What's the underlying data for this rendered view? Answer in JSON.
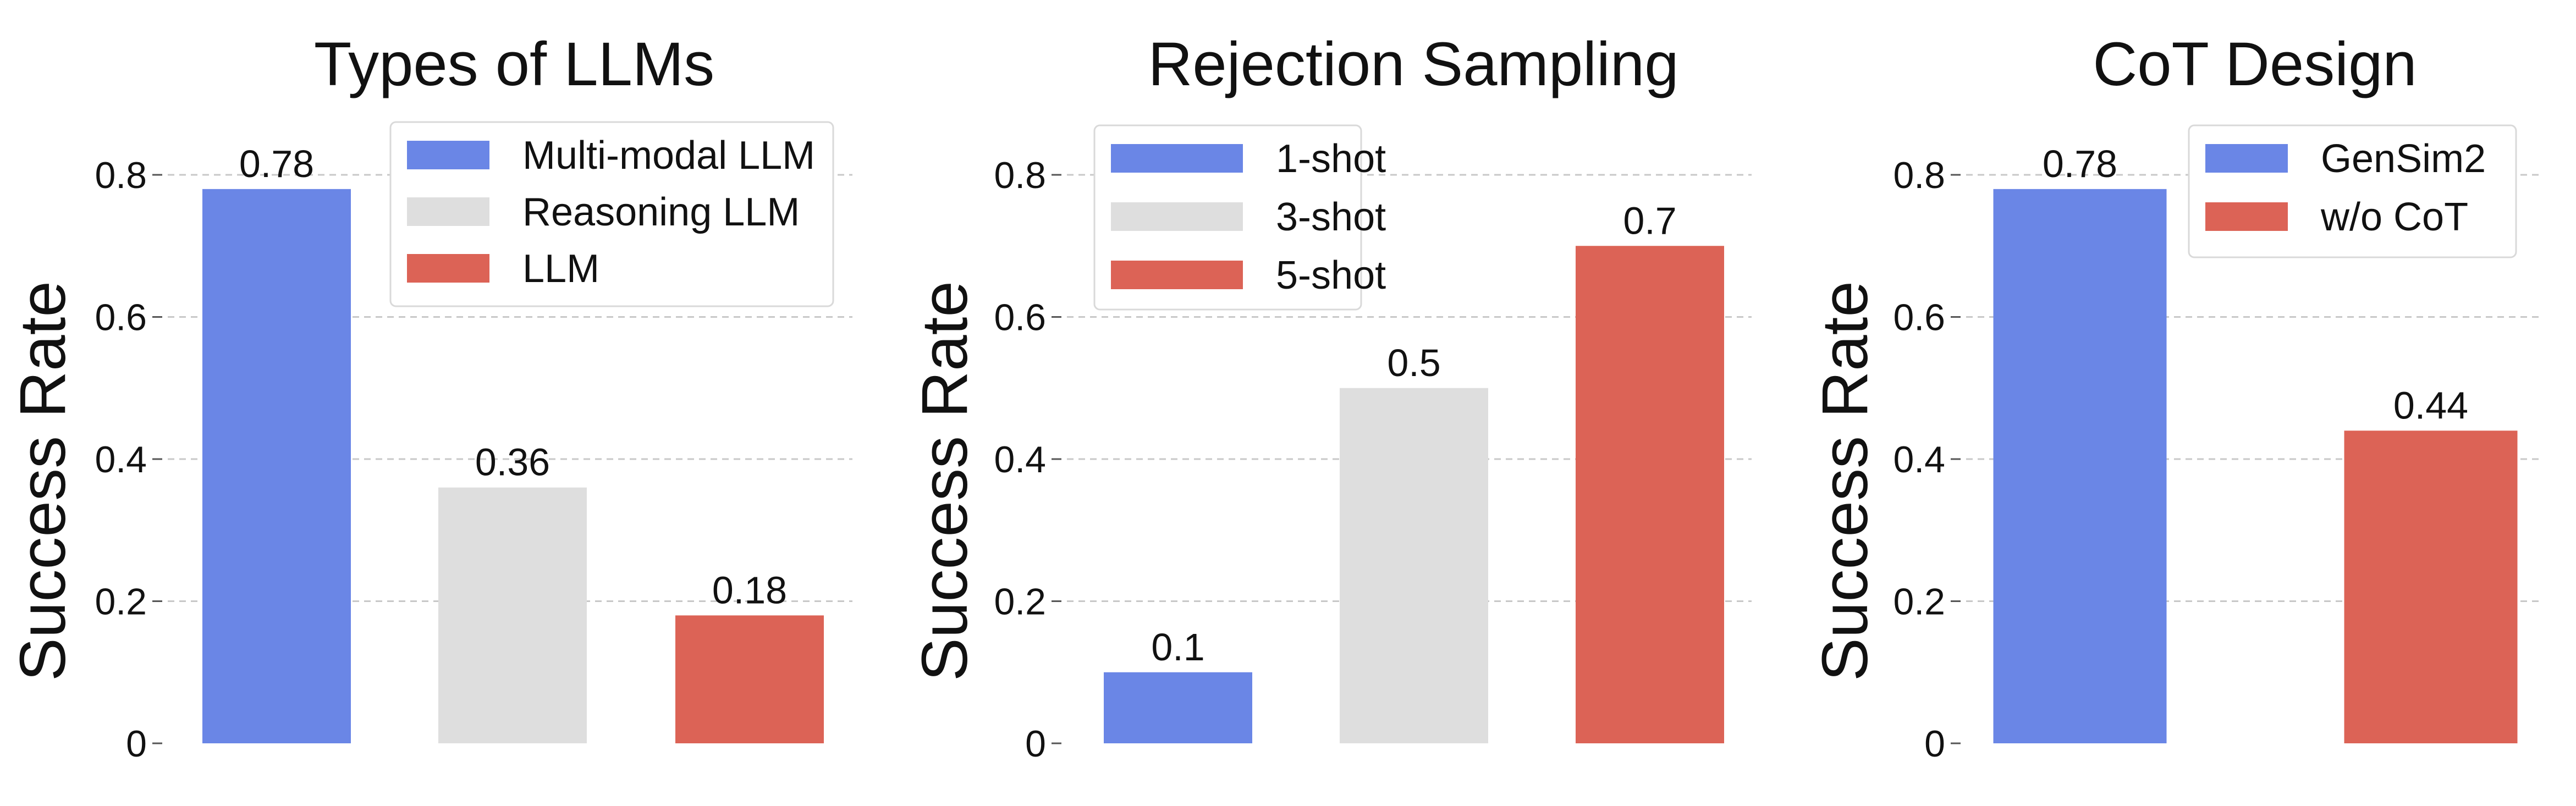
{
  "chart_data": [
    {
      "type": "bar",
      "title": "Types of LLMs",
      "xlabel": "",
      "ylabel": "Success Rate",
      "ylim": [
        0,
        0.8
      ],
      "yticks": [
        0,
        0.2,
        0.4,
        0.6,
        0.8
      ],
      "ytick_labels": [
        "0",
        "0.2",
        "0.4",
        "0.6",
        "0.8"
      ],
      "grid": "horizontal dashed",
      "legend_position": "top-right",
      "categories": [
        "Multi-modal LLM",
        "Reasoning LLM",
        "LLM"
      ],
      "values": [
        0.78,
        0.36,
        0.18
      ],
      "value_labels": [
        "0.78",
        "0.36",
        "0.18"
      ],
      "colors": [
        "#6a86e6",
        "#dedede",
        "#dc6356"
      ]
    },
    {
      "type": "bar",
      "title": "Rejection Sampling",
      "xlabel": "",
      "ylabel": "Success Rate",
      "ylim": [
        0,
        0.8
      ],
      "yticks": [
        0,
        0.2,
        0.4,
        0.6,
        0.8
      ],
      "ytick_labels": [
        "0",
        "0.2",
        "0.4",
        "0.6",
        "0.8"
      ],
      "grid": "horizontal dashed",
      "legend_position": "top-left",
      "categories": [
        "1-shot",
        "3-shot",
        "5-shot"
      ],
      "values": [
        0.1,
        0.5,
        0.7
      ],
      "value_labels": [
        "0.1",
        "0.5",
        "0.7"
      ],
      "colors": [
        "#6a86e6",
        "#dedede",
        "#dc6356"
      ]
    },
    {
      "type": "bar",
      "title": "CoT Design",
      "xlabel": "",
      "ylabel": "Success Rate",
      "ylim": [
        0,
        0.8
      ],
      "yticks": [
        0,
        0.2,
        0.4,
        0.6,
        0.8
      ],
      "ytick_labels": [
        "0",
        "0.2",
        "0.4",
        "0.6",
        "0.8"
      ],
      "grid": "horizontal dashed",
      "legend_position": "top-right",
      "categories": [
        "GenSim2",
        "w/o CoT"
      ],
      "values": [
        0.78,
        0.44
      ],
      "value_labels": [
        "0.78",
        "0.44"
      ],
      "colors": [
        "#6a86e6",
        "#dc6356"
      ]
    }
  ]
}
